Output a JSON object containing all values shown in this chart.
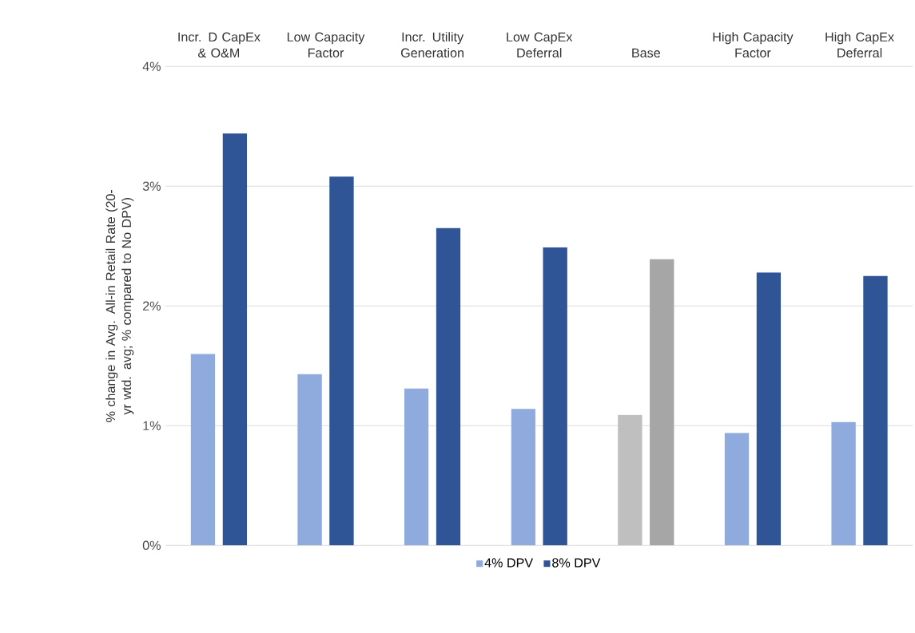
{
  "chart_data": {
    "type": "bar",
    "ylabel": "% change in Avg. All-in Retail Rate (20-yr wtd. avg; % compared to No DPV)",
    "categories": [
      "Incr. D CapEx & O&M",
      "Low Capacity Factor",
      "Incr. Utility Generation",
      "Low CapEx Deferral",
      "Base",
      "High Capacity Factor",
      "High CapEx Deferral"
    ],
    "series": [
      {
        "name": "4% DPV",
        "color": "#8faadc",
        "colors": [
          "#8faadc",
          "#8faadc",
          "#8faadc",
          "#8faadc",
          "#bfbfbf",
          "#8faadc",
          "#8faadc"
        ],
        "values": [
          1.6,
          1.43,
          1.31,
          1.14,
          1.09,
          0.94,
          1.03
        ]
      },
      {
        "name": "8% DPV",
        "color": "#2f5597",
        "colors": [
          "#2f5597",
          "#2f5597",
          "#2f5597",
          "#2f5597",
          "#a6a6a6",
          "#2f5597",
          "#2f5597"
        ],
        "values": [
          3.44,
          3.08,
          2.65,
          2.49,
          2.39,
          2.28,
          2.25
        ]
      }
    ],
    "ylim": [
      0,
      4
    ],
    "yticks": [
      {
        "value": 0,
        "label": "0%"
      },
      {
        "value": 1,
        "label": "1%"
      },
      {
        "value": 2,
        "label": "2%"
      },
      {
        "value": 3,
        "label": "3%"
      },
      {
        "value": 4,
        "label": "4%"
      }
    ],
    "grid": "y",
    "legend": "bottom"
  }
}
